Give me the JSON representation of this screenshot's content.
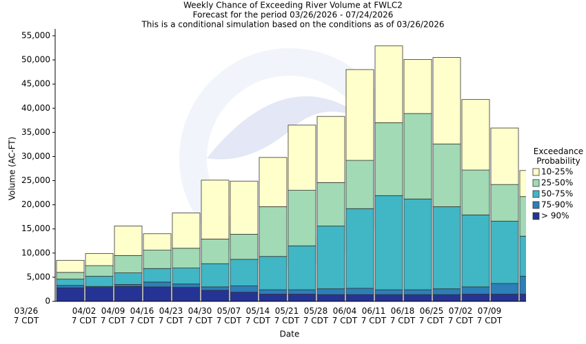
{
  "chart_data": {
    "type": "stacked_bar",
    "title": "Weekly Chance of Exceeding River Volume at FWLC2",
    "subtitle": "Forecast for the period 03/26/2026 - 07/24/2026",
    "note": "This is a conditional simulation based on the conditions as of 03/26/2026",
    "x_label": "Date",
    "y_label": "Volume (AC-FT)",
    "legend_title": "Exceedance Probability",
    "categories": [
      "03/26 7 CDT",
      "04/02 7 CDT",
      "04/09 7 CDT",
      "04/16 7 CDT",
      "04/23 7 CDT",
      "04/30 7 CDT",
      "05/07 7 CDT",
      "05/14 7 CDT",
      "05/21 7 CDT",
      "05/28 7 CDT",
      "06/04 7 CDT",
      "06/11 7 CDT",
      "06/18 7 CDT",
      "06/25 7 CDT",
      "07/02 7 CDT",
      "07/09 7 CDT",
      null
    ],
    "series": [
      {
        "name": "> 90%",
        "color": "#253494",
        "values": [
          2800,
          2900,
          3100,
          3000,
          2900,
          2300,
          1900,
          1500,
          1500,
          1400,
          1400,
          1400,
          1400,
          1400,
          1500,
          1500,
          1500
        ]
      },
      {
        "name": "75-90%",
        "color": "#2c7fb8",
        "values": [
          500,
          200,
          400,
          1000,
          700,
          700,
          1300,
          900,
          900,
          1200,
          1300,
          1000,
          1000,
          1200,
          1500,
          2200,
          3700
        ]
      },
      {
        "name": "50-75%",
        "color": "#41b6c4",
        "values": [
          1300,
          2100,
          2400,
          2800,
          3300,
          4800,
          5500,
          6900,
          9100,
          13000,
          16500,
          19500,
          18800,
          17000,
          14900,
          12900,
          8300
        ]
      },
      {
        "name": "25-50%",
        "color": "#a1dab4",
        "values": [
          1400,
          2200,
          3600,
          3800,
          4100,
          5100,
          5200,
          10300,
          11500,
          9000,
          10000,
          15100,
          17700,
          13000,
          9300,
          7600,
          8200
        ]
      },
      {
        "name": "10-25%",
        "color": "#ffffcc",
        "values": [
          2500,
          2500,
          6100,
          3400,
          7300,
          12200,
          11000,
          10200,
          13500,
          13700,
          18800,
          15900,
          11200,
          17900,
          14600,
          11700,
          5400
        ]
      }
    ],
    "ylim": [
      0,
      55000
    ],
    "yticks": [
      0,
      {
        "value": 5000,
        "label": "5,000"
      },
      {
        "value": 10000,
        "label": "10,000"
      },
      {
        "value": 15000,
        "label": "15,000"
      },
      {
        "value": 20000,
        "label": "20,000"
      },
      {
        "value": 25000,
        "label": "25,000"
      },
      {
        "value": 30000,
        "label": "30,000"
      },
      {
        "value": 35000,
        "label": "35,000"
      },
      {
        "value": 40000,
        "label": "40,000"
      },
      {
        "value": 45000,
        "label": "45,000"
      },
      {
        "value": 50000,
        "label": "50,000"
      },
      {
        "value": 55000,
        "label": "55,000"
      }
    ],
    "grid": false
  }
}
